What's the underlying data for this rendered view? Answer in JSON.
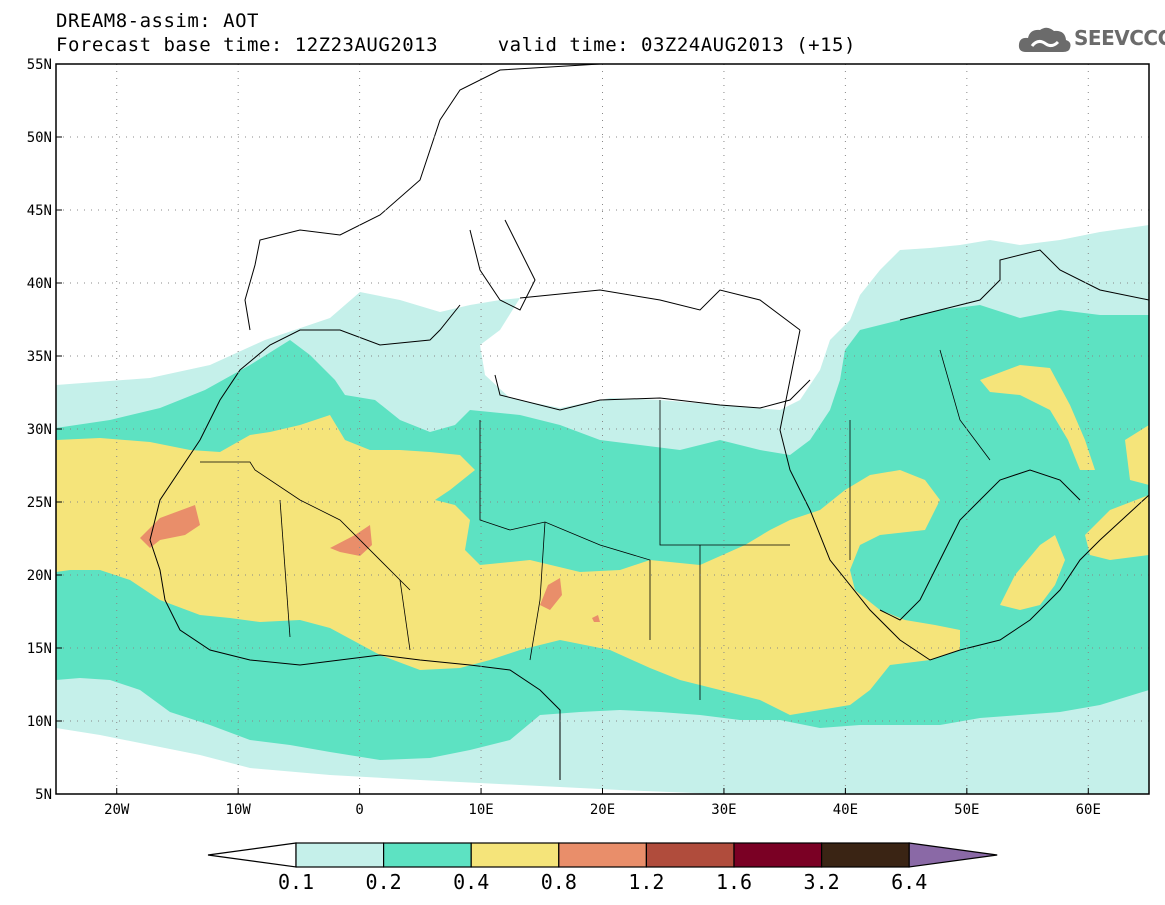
{
  "title": {
    "line1": "DREAM8-assim: AOT",
    "line2": "Forecast base time: 12Z23AUG2013     valid time: 03Z24AUG2013 (+15)"
  },
  "logo": {
    "text": "SEEVCCC",
    "icon": "cloud-icon"
  },
  "map": {
    "lon_range": [
      -25,
      65
    ],
    "lat_range": [
      5,
      55
    ],
    "lon_ticks": [
      {
        "value": -20,
        "label": "20W"
      },
      {
        "value": -10,
        "label": "10W"
      },
      {
        "value": 0,
        "label": "0"
      },
      {
        "value": 10,
        "label": "10E"
      },
      {
        "value": 20,
        "label": "20E"
      },
      {
        "value": 30,
        "label": "30E"
      },
      {
        "value": 40,
        "label": "40E"
      },
      {
        "value": 50,
        "label": "50E"
      },
      {
        "value": 60,
        "label": "60E"
      }
    ],
    "lat_ticks": [
      {
        "value": 55,
        "label": "55N"
      },
      {
        "value": 50,
        "label": "50N"
      },
      {
        "value": 45,
        "label": "45N"
      },
      {
        "value": 40,
        "label": "40N"
      },
      {
        "value": 35,
        "label": "35N"
      },
      {
        "value": 30,
        "label": "30N"
      },
      {
        "value": 25,
        "label": "25N"
      },
      {
        "value": 20,
        "label": "20N"
      },
      {
        "value": 15,
        "label": "15N"
      },
      {
        "value": 10,
        "label": "10N"
      },
      {
        "value": 5,
        "label": "5N"
      }
    ],
    "grid": "dotted"
  },
  "colorbar": {
    "colors": [
      "#c5f0ea",
      "#5de2c2",
      "#f5e47a",
      "#e98e6a",
      "#b04c3c",
      "#7a0024",
      "#3a2414"
    ],
    "under_color": "#ffffff",
    "over_color": "#8a69a6",
    "labels": [
      "0.1",
      "0.2",
      "0.4",
      "0.8",
      "1.2",
      "1.6",
      "3.2",
      "6.4"
    ]
  }
}
